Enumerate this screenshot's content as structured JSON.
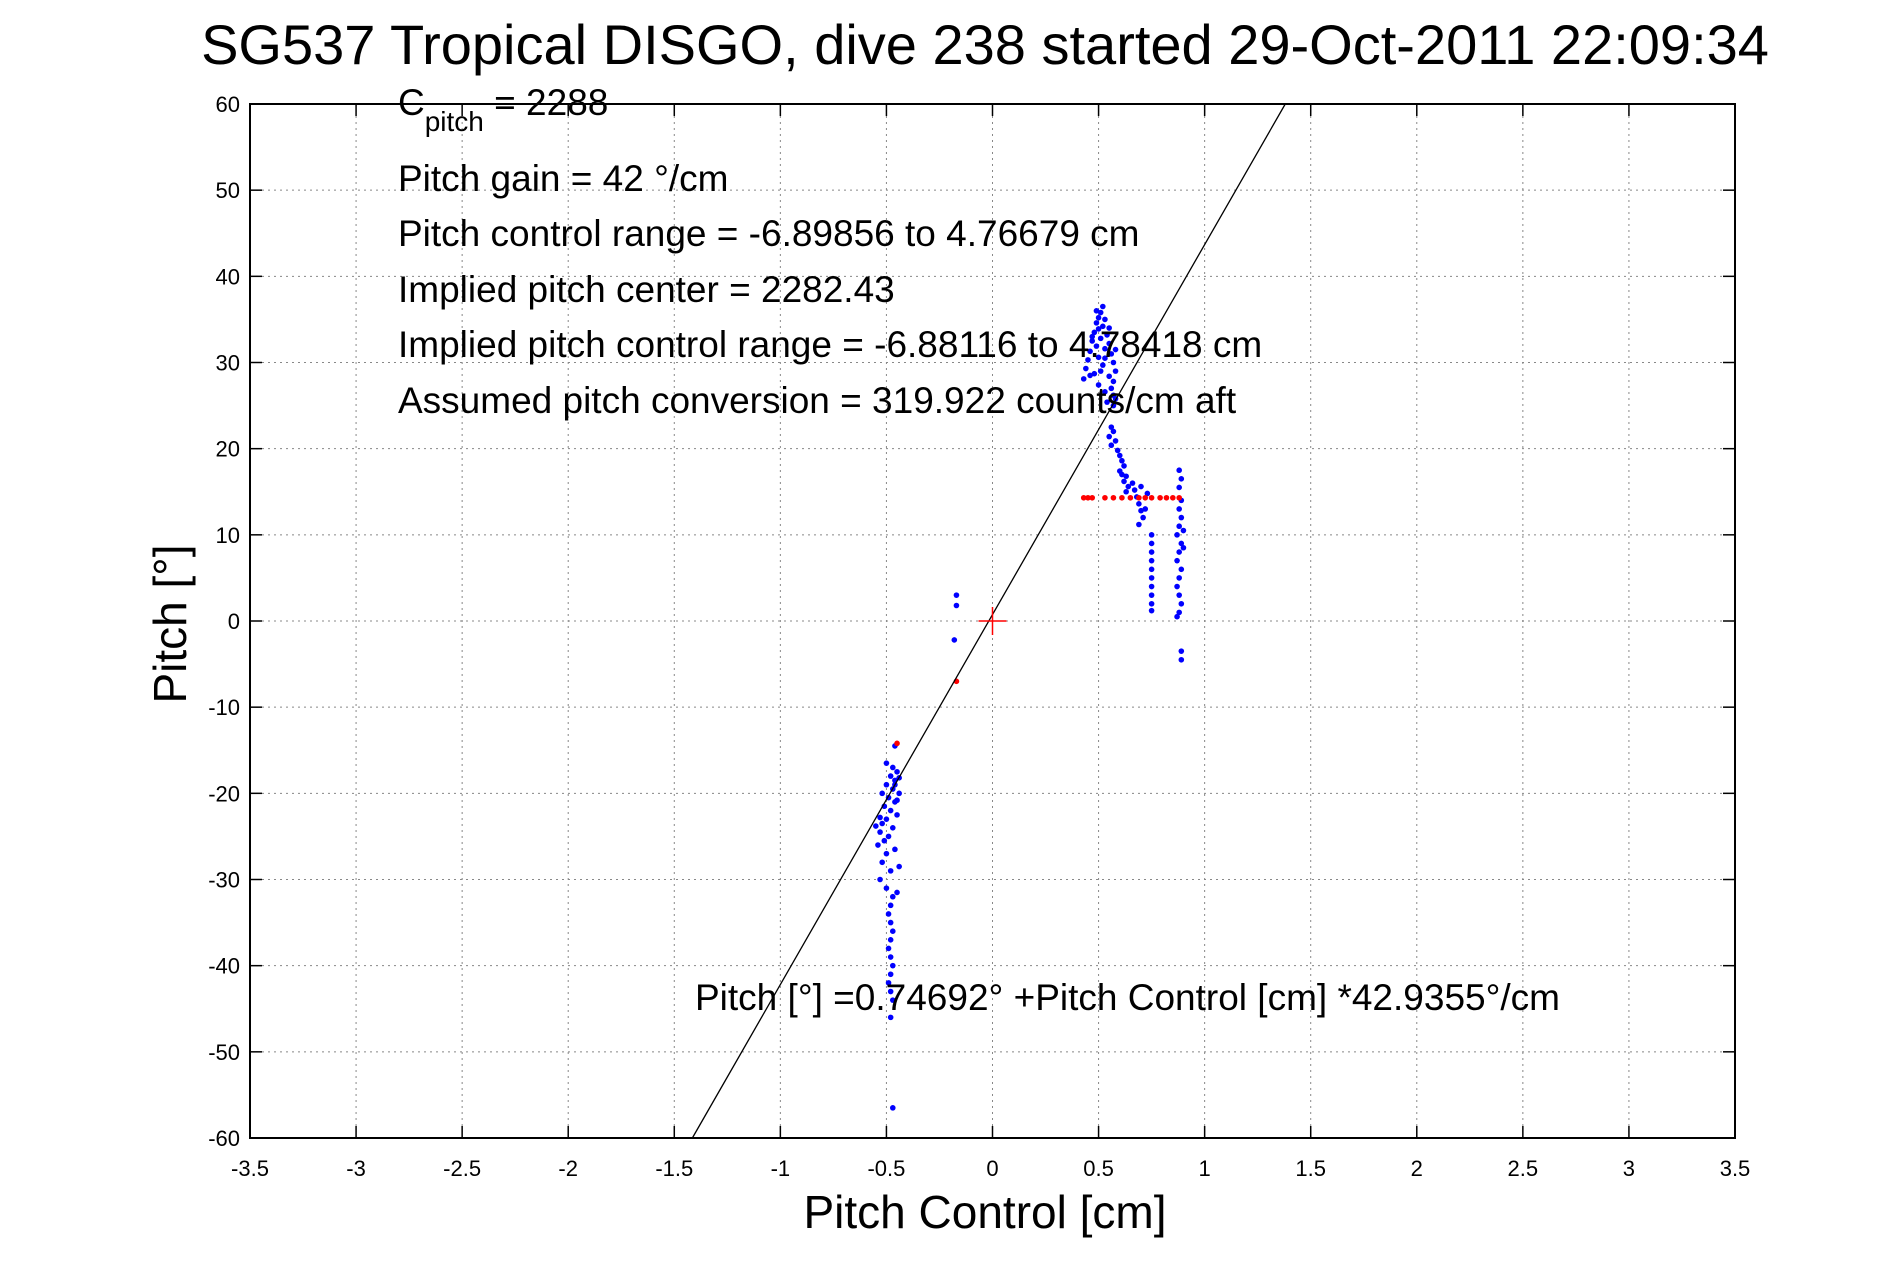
{
  "chart_data": {
    "type": "scatter",
    "title": "SG537 Tropical DISGO, dive 238 started 29-Oct-2011 22:09:34",
    "xlabel": "Pitch Control [cm]",
    "ylabel": "Pitch [°]",
    "xlim": [
      -3.5,
      3.5
    ],
    "ylim": [
      -60,
      60
    ],
    "x_ticks": [
      -3.5,
      -3,
      -2.5,
      -2,
      -1.5,
      -1,
      -0.5,
      0,
      0.5,
      1,
      1.5,
      2,
      2.5,
      3,
      3.5
    ],
    "y_ticks": [
      60,
      50,
      40,
      30,
      20,
      10,
      0,
      -10,
      -20,
      -30,
      -40,
      -50,
      -60
    ],
    "x_tick_labels": [
      "-3.5",
      "-3",
      "-2.5",
      "-2",
      "-1.5",
      "-1",
      "-0.5",
      "0",
      "0.5",
      "1",
      "1.5",
      "2",
      "2.5",
      "3",
      "3.5"
    ],
    "y_tick_labels": [
      "60",
      "50",
      "40",
      "30",
      "20",
      "10",
      "0",
      "-10",
      "-20",
      "-30",
      "-40",
      "-50",
      "-60"
    ],
    "grid": true,
    "annotations": {
      "c_pitch_main": "C",
      "c_pitch_sub": "pitch",
      "c_pitch_value": " = 2288",
      "pitch_gain": "Pitch gain = 42 °/cm",
      "control_range": "Pitch control range = -6.89856 to 4.76679 cm",
      "implied_center": "Implied pitch center = 2282.43",
      "implied_range": "Implied pitch control range = -6.88116 to 4.78418 cm",
      "assumed_conversion": "Assumed pitch conversion = 319.922 counts/cm aft",
      "fit_equation": "Pitch [°] =0.74692° +Pitch Control [cm] *42.9355°/cm"
    },
    "fit_line": {
      "intercept": 0.74692,
      "slope": 42.9355,
      "color": "#000000"
    },
    "center_marker": {
      "x": 0,
      "y": 0,
      "color": "#ff0000"
    },
    "series": [
      {
        "color": "#0000ff",
        "points": [
          [
            0.52,
            36.5
          ],
          [
            0.51,
            35.8
          ],
          [
            0.5,
            35.2
          ],
          [
            0.53,
            35.0
          ],
          [
            0.49,
            34.6
          ],
          [
            0.52,
            34.2
          ],
          [
            0.5,
            33.9
          ],
          [
            0.48,
            33.5
          ],
          [
            0.54,
            33.2
          ],
          [
            0.51,
            32.8
          ],
          [
            0.47,
            32.5
          ],
          [
            0.55,
            32.2
          ],
          [
            0.49,
            31.9
          ],
          [
            0.53,
            31.6
          ],
          [
            0.46,
            31.3
          ],
          [
            0.56,
            31.0
          ],
          [
            0.5,
            30.6
          ],
          [
            0.45,
            30.3
          ],
          [
            0.57,
            30.0
          ],
          [
            0.52,
            29.7
          ],
          [
            0.44,
            29.3
          ],
          [
            0.58,
            29.0
          ],
          [
            0.48,
            28.7
          ],
          [
            0.55,
            28.4
          ],
          [
            0.43,
            28.1
          ],
          [
            0.57,
            27.8
          ],
          [
            0.5,
            27.4
          ],
          [
            0.56,
            27.0
          ],
          [
            0.53,
            26.6
          ],
          [
            0.57,
            26.2
          ],
          [
            0.58,
            25.8
          ],
          [
            0.54,
            25.4
          ],
          [
            0.57,
            25.0
          ],
          [
            0.51,
            29.0
          ],
          [
            0.47,
            33.0
          ],
          [
            0.55,
            34.0
          ],
          [
            0.46,
            28.5
          ],
          [
            0.58,
            31.5
          ],
          [
            0.49,
            36.0
          ],
          [
            0.53,
            30.5
          ],
          [
            0.56,
            22.5
          ],
          [
            0.57,
            22.0
          ],
          [
            0.55,
            21.4
          ],
          [
            0.58,
            20.9
          ],
          [
            0.56,
            20.4
          ],
          [
            0.59,
            19.8
          ],
          [
            0.6,
            19.2
          ],
          [
            0.61,
            18.6
          ],
          [
            0.62,
            18.0
          ],
          [
            0.6,
            17.4
          ],
          [
            0.63,
            16.8
          ],
          [
            0.62,
            16.2
          ],
          [
            0.64,
            15.6
          ],
          [
            0.63,
            15.0
          ],
          [
            0.61,
            17.0
          ],
          [
            0.66,
            16.0
          ],
          [
            0.67,
            15.2
          ],
          [
            0.68,
            14.4
          ],
          [
            0.69,
            13.6
          ],
          [
            0.7,
            12.8
          ],
          [
            0.71,
            12.0
          ],
          [
            0.69,
            11.2
          ],
          [
            0.72,
            13.0
          ],
          [
            0.73,
            14.8
          ],
          [
            0.7,
            15.6
          ],
          [
            0.75,
            9.0
          ],
          [
            0.75,
            8.0
          ],
          [
            0.75,
            7.0
          ],
          [
            0.75,
            6.0
          ],
          [
            0.75,
            5.0
          ],
          [
            0.75,
            4.0
          ],
          [
            0.75,
            3.0
          ],
          [
            0.75,
            2.0
          ],
          [
            0.75,
            1.2
          ],
          [
            0.75,
            10.0
          ],
          [
            0.88,
            17.5
          ],
          [
            0.89,
            16.5
          ],
          [
            0.88,
            15.5
          ],
          [
            0.89,
            14.0
          ],
          [
            0.88,
            13.0
          ],
          [
            0.89,
            12.0
          ],
          [
            0.88,
            11.0
          ],
          [
            0.87,
            10.0
          ],
          [
            0.89,
            9.0
          ],
          [
            0.88,
            8.0
          ],
          [
            0.87,
            7.0
          ],
          [
            0.89,
            6.0
          ],
          [
            0.88,
            5.0
          ],
          [
            0.87,
            4.0
          ],
          [
            0.88,
            3.0
          ],
          [
            0.89,
            2.0
          ],
          [
            0.88,
            1.0
          ],
          [
            0.87,
            0.5
          ],
          [
            0.9,
            10.5
          ],
          [
            0.9,
            8.5
          ],
          [
            0.89,
            -3.5
          ],
          [
            0.89,
            -4.5
          ],
          [
            -0.17,
            3.0
          ],
          [
            -0.17,
            1.8
          ],
          [
            -0.18,
            -2.2
          ],
          [
            -0.46,
            -14.5
          ],
          [
            -0.5,
            -16.5
          ],
          [
            -0.47,
            -17.0
          ],
          [
            -0.45,
            -17.5
          ],
          [
            -0.48,
            -18.0
          ],
          [
            -0.46,
            -18.5
          ],
          [
            -0.5,
            -19.0
          ],
          [
            -0.47,
            -19.5
          ],
          [
            -0.44,
            -20.0
          ],
          [
            -0.49,
            -20.5
          ],
          [
            -0.46,
            -21.0
          ],
          [
            -0.51,
            -21.5
          ],
          [
            -0.48,
            -22.0
          ],
          [
            -0.45,
            -22.5
          ],
          [
            -0.5,
            -23.0
          ],
          [
            -0.52,
            -23.5
          ],
          [
            -0.47,
            -24.0
          ],
          [
            -0.53,
            -24.5
          ],
          [
            -0.49,
            -25.0
          ],
          [
            -0.51,
            -25.5
          ],
          [
            -0.54,
            -26.0
          ],
          [
            -0.5,
            -27.0
          ],
          [
            -0.52,
            -28.0
          ],
          [
            -0.48,
            -29.0
          ],
          [
            -0.53,
            -30.0
          ],
          [
            -0.5,
            -31.0
          ],
          [
            -0.47,
            -32.0
          ],
          [
            -0.48,
            -33.0
          ],
          [
            -0.49,
            -34.0
          ],
          [
            -0.48,
            -35.0
          ],
          [
            -0.47,
            -36.0
          ],
          [
            -0.48,
            -37.0
          ],
          [
            -0.49,
            -38.0
          ],
          [
            -0.48,
            -39.0
          ],
          [
            -0.47,
            -40.0
          ],
          [
            -0.48,
            -41.0
          ],
          [
            -0.49,
            -42.0
          ],
          [
            -0.48,
            -43.0
          ],
          [
            -0.47,
            -44.0
          ],
          [
            -0.48,
            -46.0
          ],
          [
            -0.47,
            -56.5
          ],
          [
            -0.46,
            -19.0
          ],
          [
            -0.45,
            -20.8
          ],
          [
            -0.44,
            -18.2
          ],
          [
            -0.52,
            -20.0
          ],
          [
            -0.53,
            -22.8
          ],
          [
            -0.55,
            -23.8
          ],
          [
            -0.46,
            -26.5
          ],
          [
            -0.44,
            -28.5
          ],
          [
            -0.45,
            -31.5
          ]
        ]
      },
      {
        "color": "#ff0000",
        "points": [
          [
            0.43,
            14.3
          ],
          [
            0.45,
            14.3
          ],
          [
            0.47,
            14.3
          ],
          [
            0.53,
            14.3
          ],
          [
            0.57,
            14.3
          ],
          [
            0.61,
            14.3
          ],
          [
            0.65,
            14.3
          ],
          [
            0.69,
            14.3
          ],
          [
            0.72,
            14.3
          ],
          [
            0.75,
            14.3
          ],
          [
            0.79,
            14.3
          ],
          [
            0.82,
            14.3
          ],
          [
            0.85,
            14.3
          ],
          [
            0.88,
            14.3
          ],
          [
            -0.17,
            -7.0
          ],
          [
            -0.45,
            -14.2
          ]
        ]
      }
    ]
  }
}
